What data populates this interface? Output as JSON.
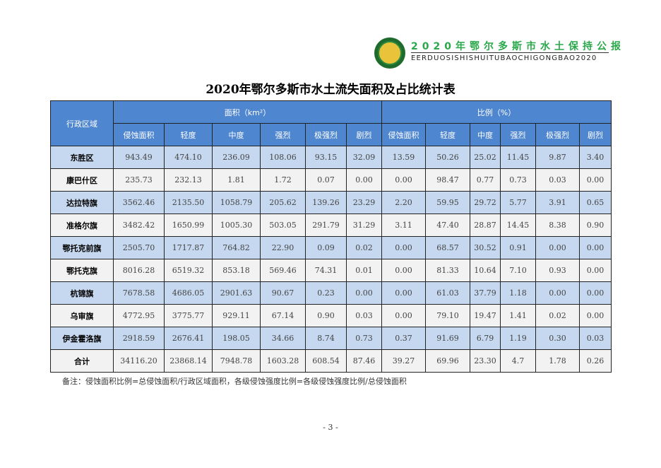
{
  "header": {
    "brand_cn": "2020年鄂尔多斯市水土保持公报",
    "brand_en": "EERDUOSISHISHUITUBAOCHIGONGBAO2020",
    "brand_color": "#2aa84a"
  },
  "title": "2020年鄂尔多斯市水土流失面积及占比统计表",
  "table": {
    "region_header": "行政区域",
    "group_area": "面积（km²）",
    "group_ratio": "比例（%）",
    "sub_headers": [
      "侵蚀面积",
      "轻度",
      "中度",
      "强烈",
      "极强烈",
      "剧烈",
      "侵蚀面积",
      "轻度",
      "中度",
      "强烈",
      "极强烈",
      "剧烈"
    ],
    "rows": [
      {
        "region": "东胜区",
        "values": [
          "943.49",
          "474.10",
          "236.09",
          "108.06",
          "93.15",
          "32.09",
          "13.59",
          "50.26",
          "25.02",
          "11.45",
          "9.87",
          "3.40"
        ]
      },
      {
        "region": "康巴什区",
        "values": [
          "235.73",
          "232.13",
          "1.81",
          "1.72",
          "0.07",
          "0.00",
          "0.00",
          "98.47",
          "0.77",
          "0.73",
          "0.03",
          "0.00"
        ]
      },
      {
        "region": "达拉特旗",
        "values": [
          "3562.46",
          "2135.50",
          "1058.79",
          "205.62",
          "139.26",
          "23.29",
          "2.20",
          "59.95",
          "29.72",
          "5.77",
          "3.91",
          "0.65"
        ]
      },
      {
        "region": "准格尔旗",
        "values": [
          "3482.42",
          "1650.99",
          "1005.30",
          "503.05",
          "291.79",
          "31.29",
          "3.11",
          "47.40",
          "28.87",
          "14.45",
          "8.38",
          "0.90"
        ]
      },
      {
        "region": "鄂托克前旗",
        "values": [
          "2505.70",
          "1717.87",
          "764.82",
          "22.90",
          "0.09",
          "0.02",
          "0.00",
          "68.57",
          "30.52",
          "0.91",
          "0.00",
          "0.00"
        ]
      },
      {
        "region": "鄂托克旗",
        "values": [
          "8016.28",
          "6519.32",
          "853.18",
          "569.46",
          "74.31",
          "0.01",
          "0.00",
          "81.33",
          "10.64",
          "7.10",
          "0.93",
          "0.00"
        ]
      },
      {
        "region": "杭锦旗",
        "values": [
          "7678.58",
          "4686.05",
          "2901.63",
          "90.67",
          "0.23",
          "0.00",
          "0.00",
          "61.03",
          "37.79",
          "1.18",
          "0.00",
          "0.00"
        ]
      },
      {
        "region": "乌审旗",
        "values": [
          "4772.95",
          "3775.77",
          "929.11",
          "67.14",
          "0.90",
          "0.03",
          "0.00",
          "79.10",
          "19.47",
          "1.41",
          "0.02",
          "0.00"
        ]
      },
      {
        "region": "伊金霍洛旗",
        "values": [
          "2918.59",
          "2676.41",
          "198.05",
          "34.66",
          "8.74",
          "0.73",
          "0.37",
          "91.69",
          "6.79",
          "1.19",
          "0.30",
          "0.03"
        ]
      },
      {
        "region": "合计",
        "values": [
          "34116.20",
          "23868.14",
          "7948.78",
          "1603.28",
          "608.54",
          "87.46",
          "39.27",
          "69.96",
          "23.30",
          "4.7",
          "1.78",
          "0.26"
        ]
      }
    ]
  },
  "note": "备注：侵蚀面积比例=总侵蚀面积/行政区域面积，各级侵蚀强度比例=各级侵蚀强度比例/总侵蚀面积",
  "page_number": "- 3 -",
  "colors": {
    "header_bg": "#4f86d0",
    "row_odd": "#c6d8f0",
    "row_even": "#f2f2f2"
  }
}
